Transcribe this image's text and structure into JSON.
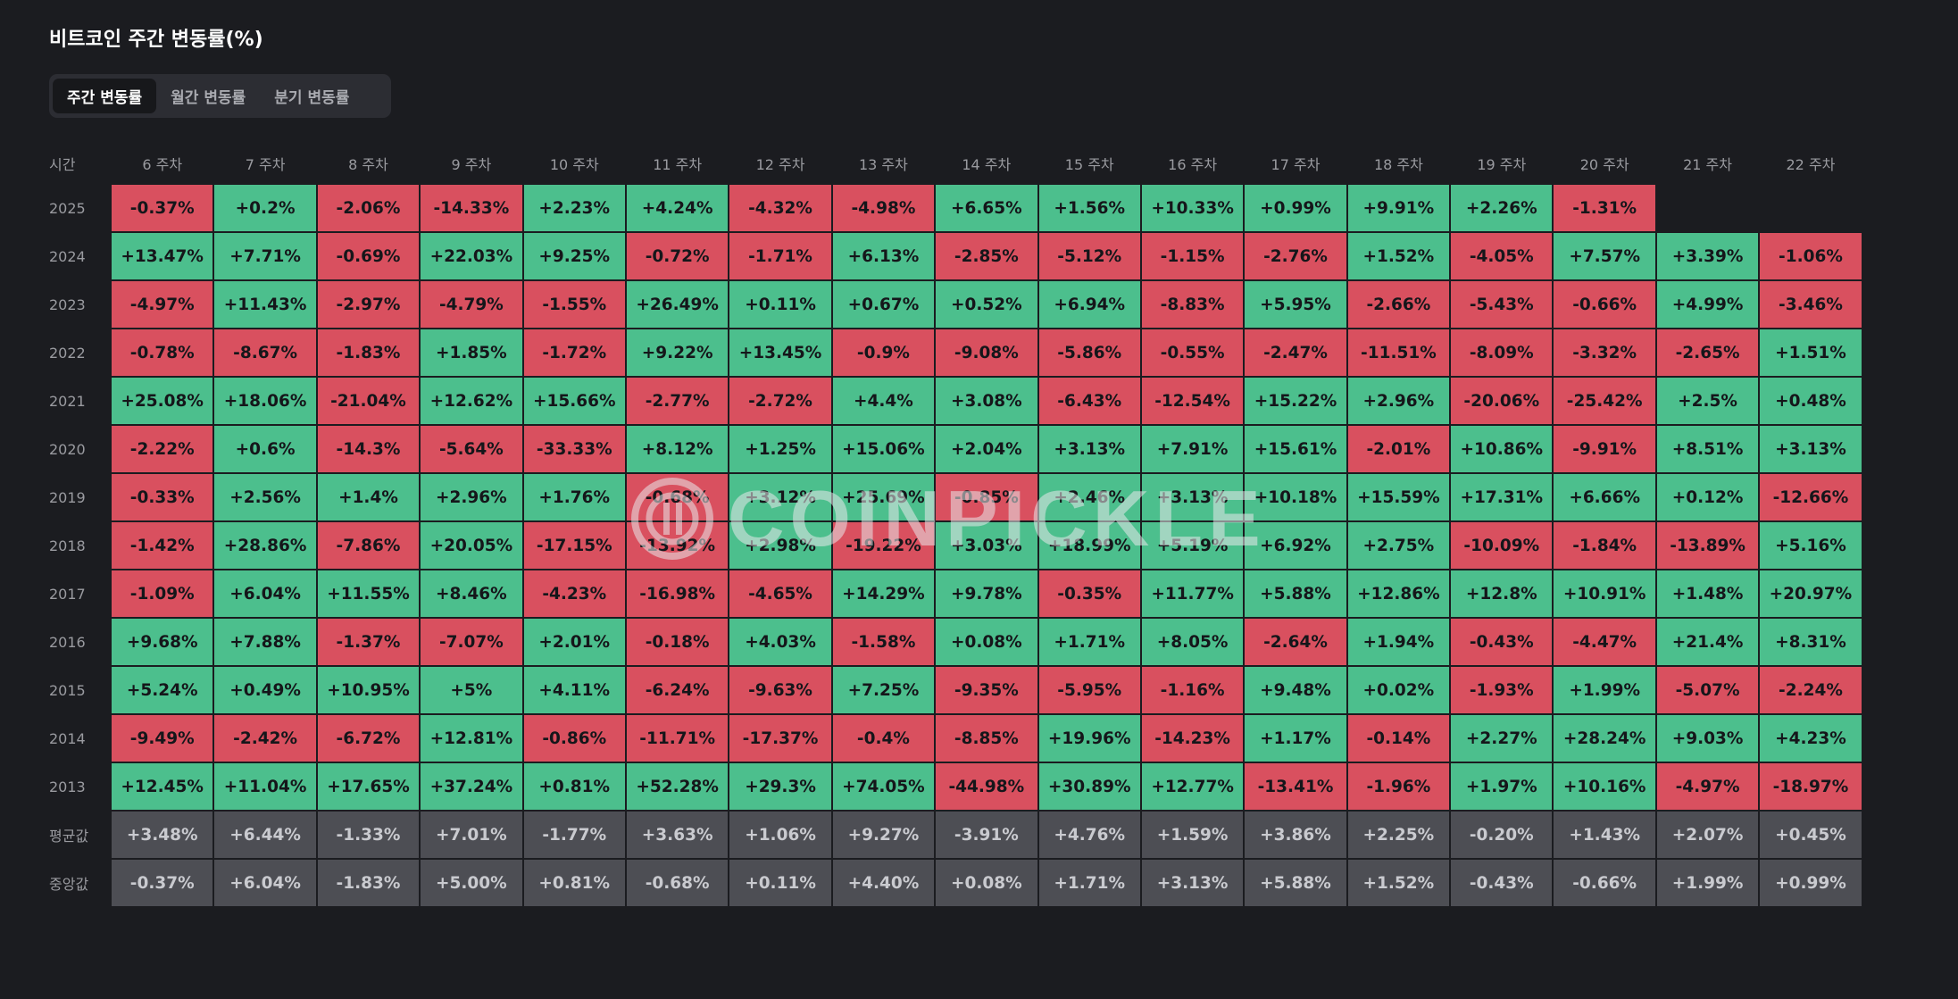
{
  "title": "비트코인 주간 변동률(%)",
  "tabs": [
    {
      "label": "주간 변동률",
      "active": true
    },
    {
      "label": "월간 변동률",
      "active": false
    },
    {
      "label": "분기 변동률",
      "active": false
    }
  ],
  "corner_label": "시간",
  "watermark": "COINPICKLE",
  "colors": {
    "positive": "#4cbf8d",
    "negative": "#d9505f",
    "stat": "#4d4e54",
    "background": "#1b1c20"
  },
  "columns": [
    "6 주차",
    "7 주차",
    "8 주차",
    "9 주차",
    "10 주차",
    "11 주차",
    "12 주차",
    "13 주차",
    "14 주차",
    "15 주차",
    "16 주차",
    "17 주차",
    "18 주차",
    "19 주차",
    "20 주차",
    "21 주차",
    "22 주차"
  ],
  "rows": [
    {
      "year": "2025",
      "values": [
        "-0.37%",
        "+0.2%",
        "-2.06%",
        "-14.33%",
        "+2.23%",
        "+4.24%",
        "-4.32%",
        "-4.98%",
        "+6.65%",
        "+1.56%",
        "+10.33%",
        "+0.99%",
        "+9.91%",
        "+2.26%",
        "-1.31%",
        "",
        ""
      ]
    },
    {
      "year": "2024",
      "values": [
        "+13.47%",
        "+7.71%",
        "-0.69%",
        "+22.03%",
        "+9.25%",
        "-0.72%",
        "-1.71%",
        "+6.13%",
        "-2.85%",
        "-5.12%",
        "-1.15%",
        "-2.76%",
        "+1.52%",
        "-4.05%",
        "+7.57%",
        "+3.39%",
        "-1.06%"
      ]
    },
    {
      "year": "2023",
      "values": [
        "-4.97%",
        "+11.43%",
        "-2.97%",
        "-4.79%",
        "-1.55%",
        "+26.49%",
        "+0.11%",
        "+0.67%",
        "+0.52%",
        "+6.94%",
        "-8.83%",
        "+5.95%",
        "-2.66%",
        "-5.43%",
        "-0.66%",
        "+4.99%",
        "-3.46%"
      ]
    },
    {
      "year": "2022",
      "values": [
        "-0.78%",
        "-8.67%",
        "-1.83%",
        "+1.85%",
        "-1.72%",
        "+9.22%",
        "+13.45%",
        "-0.9%",
        "-9.08%",
        "-5.86%",
        "-0.55%",
        "-2.47%",
        "-11.51%",
        "-8.09%",
        "-3.32%",
        "-2.65%",
        "+1.51%"
      ]
    },
    {
      "year": "2021",
      "values": [
        "+25.08%",
        "+18.06%",
        "-21.04%",
        "+12.62%",
        "+15.66%",
        "-2.77%",
        "-2.72%",
        "+4.4%",
        "+3.08%",
        "-6.43%",
        "-12.54%",
        "+15.22%",
        "+2.96%",
        "-20.06%",
        "-25.42%",
        "+2.5%",
        "+0.48%"
      ]
    },
    {
      "year": "2020",
      "values": [
        "-2.22%",
        "+0.6%",
        "-14.3%",
        "-5.64%",
        "-33.33%",
        "+8.12%",
        "+1.25%",
        "+15.06%",
        "+2.04%",
        "+3.13%",
        "+7.91%",
        "+15.61%",
        "-2.01%",
        "+10.86%",
        "-9.91%",
        "+8.51%",
        "+3.13%"
      ]
    },
    {
      "year": "2019",
      "values": [
        "-0.33%",
        "+2.56%",
        "+1.4%",
        "+2.96%",
        "+1.76%",
        "-0.68%",
        "+3.12%",
        "+25.69%",
        "-0.85%",
        "+2.46%",
        "+3.13%",
        "+10.18%",
        "+15.59%",
        "+17.31%",
        "+6.66%",
        "+0.12%",
        "-12.66%"
      ]
    },
    {
      "year": "2018",
      "values": [
        "-1.42%",
        "+28.86%",
        "-7.86%",
        "+20.05%",
        "-17.15%",
        "-13.92%",
        "+2.98%",
        "-19.22%",
        "+3.03%",
        "+18.99%",
        "+5.19%",
        "+6.92%",
        "+2.75%",
        "-10.09%",
        "-1.84%",
        "-13.89%",
        "+5.16%"
      ]
    },
    {
      "year": "2017",
      "values": [
        "-1.09%",
        "+6.04%",
        "+11.55%",
        "+8.46%",
        "-4.23%",
        "-16.98%",
        "-4.65%",
        "+14.29%",
        "+9.78%",
        "-0.35%",
        "+11.77%",
        "+5.88%",
        "+12.86%",
        "+12.8%",
        "+10.91%",
        "+1.48%",
        "+20.97%"
      ]
    },
    {
      "year": "2016",
      "values": [
        "+9.68%",
        "+7.88%",
        "-1.37%",
        "-7.07%",
        "+2.01%",
        "-0.18%",
        "+4.03%",
        "-1.58%",
        "+0.08%",
        "+1.71%",
        "+8.05%",
        "-2.64%",
        "+1.94%",
        "-0.43%",
        "-4.47%",
        "+21.4%",
        "+8.31%"
      ]
    },
    {
      "year": "2015",
      "values": [
        "+5.24%",
        "+0.49%",
        "+10.95%",
        "+5%",
        "+4.11%",
        "-6.24%",
        "-9.63%",
        "+7.25%",
        "-9.35%",
        "-5.95%",
        "-1.16%",
        "+9.48%",
        "+0.02%",
        "-1.93%",
        "+1.99%",
        "-5.07%",
        "-2.24%"
      ]
    },
    {
      "year": "2014",
      "values": [
        "-9.49%",
        "-2.42%",
        "-6.72%",
        "+12.81%",
        "-0.86%",
        "-11.71%",
        "-17.37%",
        "-0.4%",
        "-8.85%",
        "+19.96%",
        "-14.23%",
        "+1.17%",
        "-0.14%",
        "+2.27%",
        "+28.24%",
        "+9.03%",
        "+4.23%"
      ]
    },
    {
      "year": "2013",
      "values": [
        "+12.45%",
        "+11.04%",
        "+17.65%",
        "+37.24%",
        "+0.81%",
        "+52.28%",
        "+29.3%",
        "+74.05%",
        "-44.98%",
        "+30.89%",
        "+12.77%",
        "-13.41%",
        "-1.96%",
        "+1.97%",
        "+10.16%",
        "-4.97%",
        "-18.97%"
      ]
    }
  ],
  "stats": [
    {
      "label": "평균값",
      "values": [
        "+3.48%",
        "+6.44%",
        "-1.33%",
        "+7.01%",
        "-1.77%",
        "+3.63%",
        "+1.06%",
        "+9.27%",
        "-3.91%",
        "+4.76%",
        "+1.59%",
        "+3.86%",
        "+2.25%",
        "-0.20%",
        "+1.43%",
        "+2.07%",
        "+0.45%"
      ]
    },
    {
      "label": "중앙값",
      "values": [
        "-0.37%",
        "+6.04%",
        "-1.83%",
        "+5.00%",
        "+0.81%",
        "-0.68%",
        "+0.11%",
        "+4.40%",
        "+0.08%",
        "+1.71%",
        "+3.13%",
        "+5.88%",
        "+1.52%",
        "-0.43%",
        "-0.66%",
        "+1.99%",
        "+0.99%"
      ]
    }
  ]
}
